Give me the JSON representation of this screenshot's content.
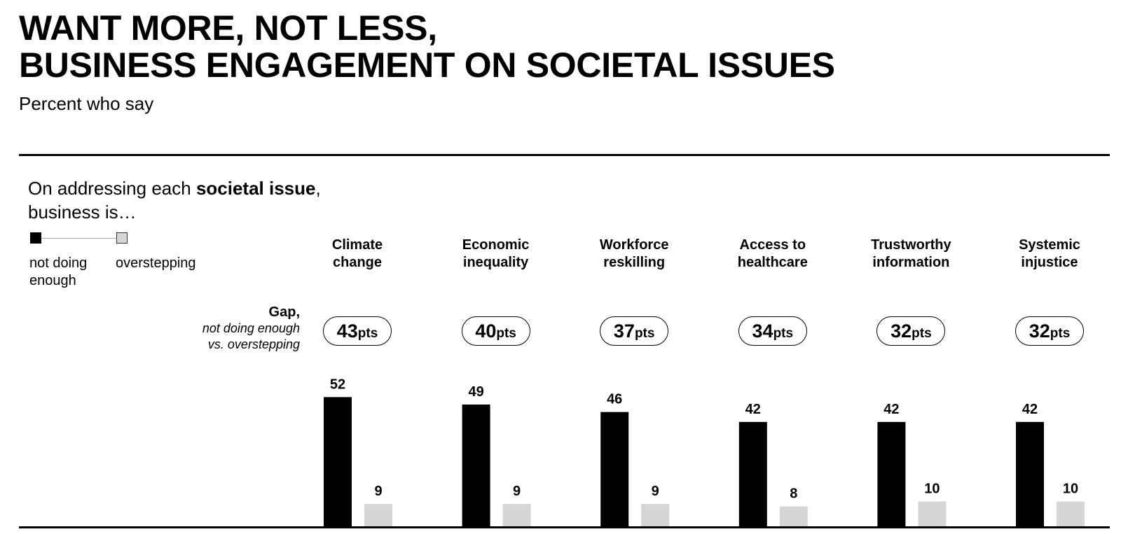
{
  "title_line1": "WANT MORE, NOT LESS,",
  "title_line2": "BUSINESS ENGAGEMENT ON SOCIETAL ISSUES",
  "subtitle": "Percent who say",
  "question_part1": "On addressing each ",
  "question_bold": "societal issue",
  "question_part2": ",",
  "question_line2": "business is…",
  "legend": {
    "not_doing_enough": "not doing enough",
    "overstepping": "overstepping"
  },
  "gap_label": {
    "title": "Gap,",
    "line1": "not doing enough",
    "line2": "vs. overstepping"
  },
  "gap_unit": "pts",
  "colors": {
    "not_doing_enough": "#000000",
    "overstepping": "#d6d6d6"
  },
  "chart_data": {
    "type": "bar",
    "categories": [
      [
        "Climate",
        "change"
      ],
      [
        "Economic",
        "inequality"
      ],
      [
        "Workforce",
        "reskilling"
      ],
      [
        "Access to",
        "healthcare"
      ],
      [
        "Trustworthy",
        "information"
      ],
      [
        "Systemic",
        "injustice"
      ]
    ],
    "series": [
      {
        "name": "not doing enough",
        "values": [
          52,
          49,
          46,
          42,
          42,
          42
        ]
      },
      {
        "name": "overstepping",
        "values": [
          9,
          9,
          9,
          8,
          10,
          10
        ]
      }
    ],
    "gaps": [
      43,
      40,
      37,
      34,
      32,
      32
    ],
    "ylim": [
      0,
      52
    ]
  }
}
